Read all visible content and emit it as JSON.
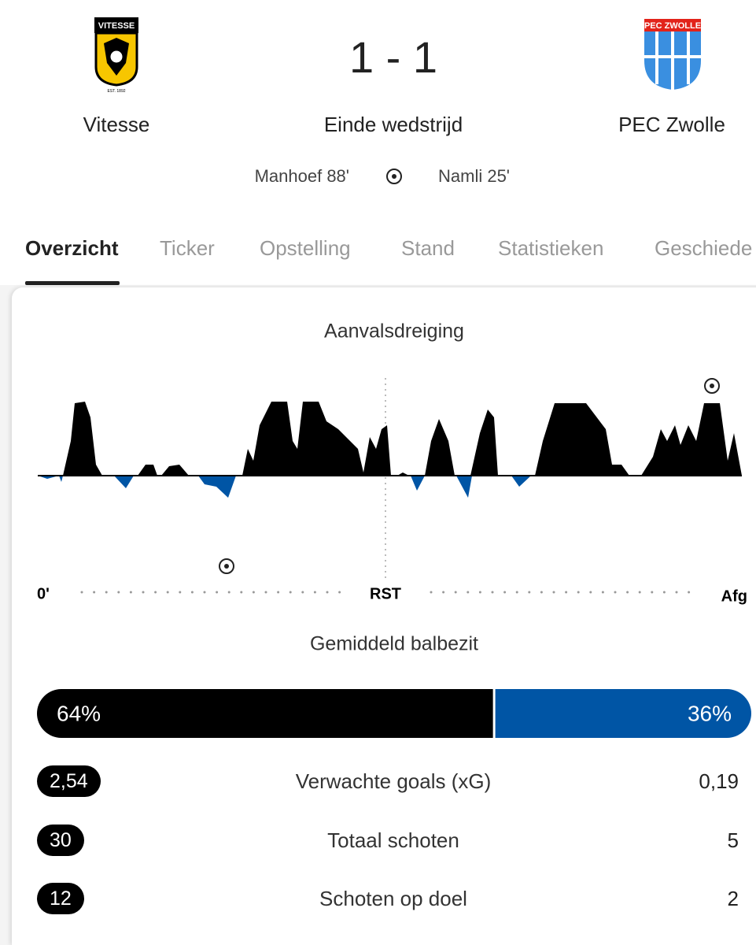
{
  "header": {
    "home": {
      "name": "Vitesse",
      "logo_text": "VITESSE",
      "logo_sub": "EST. 1892"
    },
    "away": {
      "name": "PEC Zwolle",
      "logo_text": "PEC ZWOLLE"
    },
    "score": "1 - 1",
    "status": "Einde wedstrijd",
    "home_scorer": "Manhoef 88'",
    "away_scorer": "Namli 25'"
  },
  "tabs": [
    "Overzicht",
    "Ticker",
    "Opstelling",
    "Stand",
    "Statistieken",
    "Geschiede"
  ],
  "momentum": {
    "title": "Aanvalsdreiging",
    "start": "0'",
    "half": "RST",
    "end": "Afg"
  },
  "possession": {
    "title": "Gemiddeld balbezit",
    "values": [
      64,
      36
    ],
    "value_labels": [
      "64%",
      "36%"
    ]
  },
  "stats": [
    {
      "label": "Verwachte goals (xG)",
      "home": "2,54",
      "away": "0,19"
    },
    {
      "label": "Totaal schoten",
      "home": "30",
      "away": "5"
    },
    {
      "label": "Schoten op doel",
      "home": "12",
      "away": "2"
    }
  ]
}
